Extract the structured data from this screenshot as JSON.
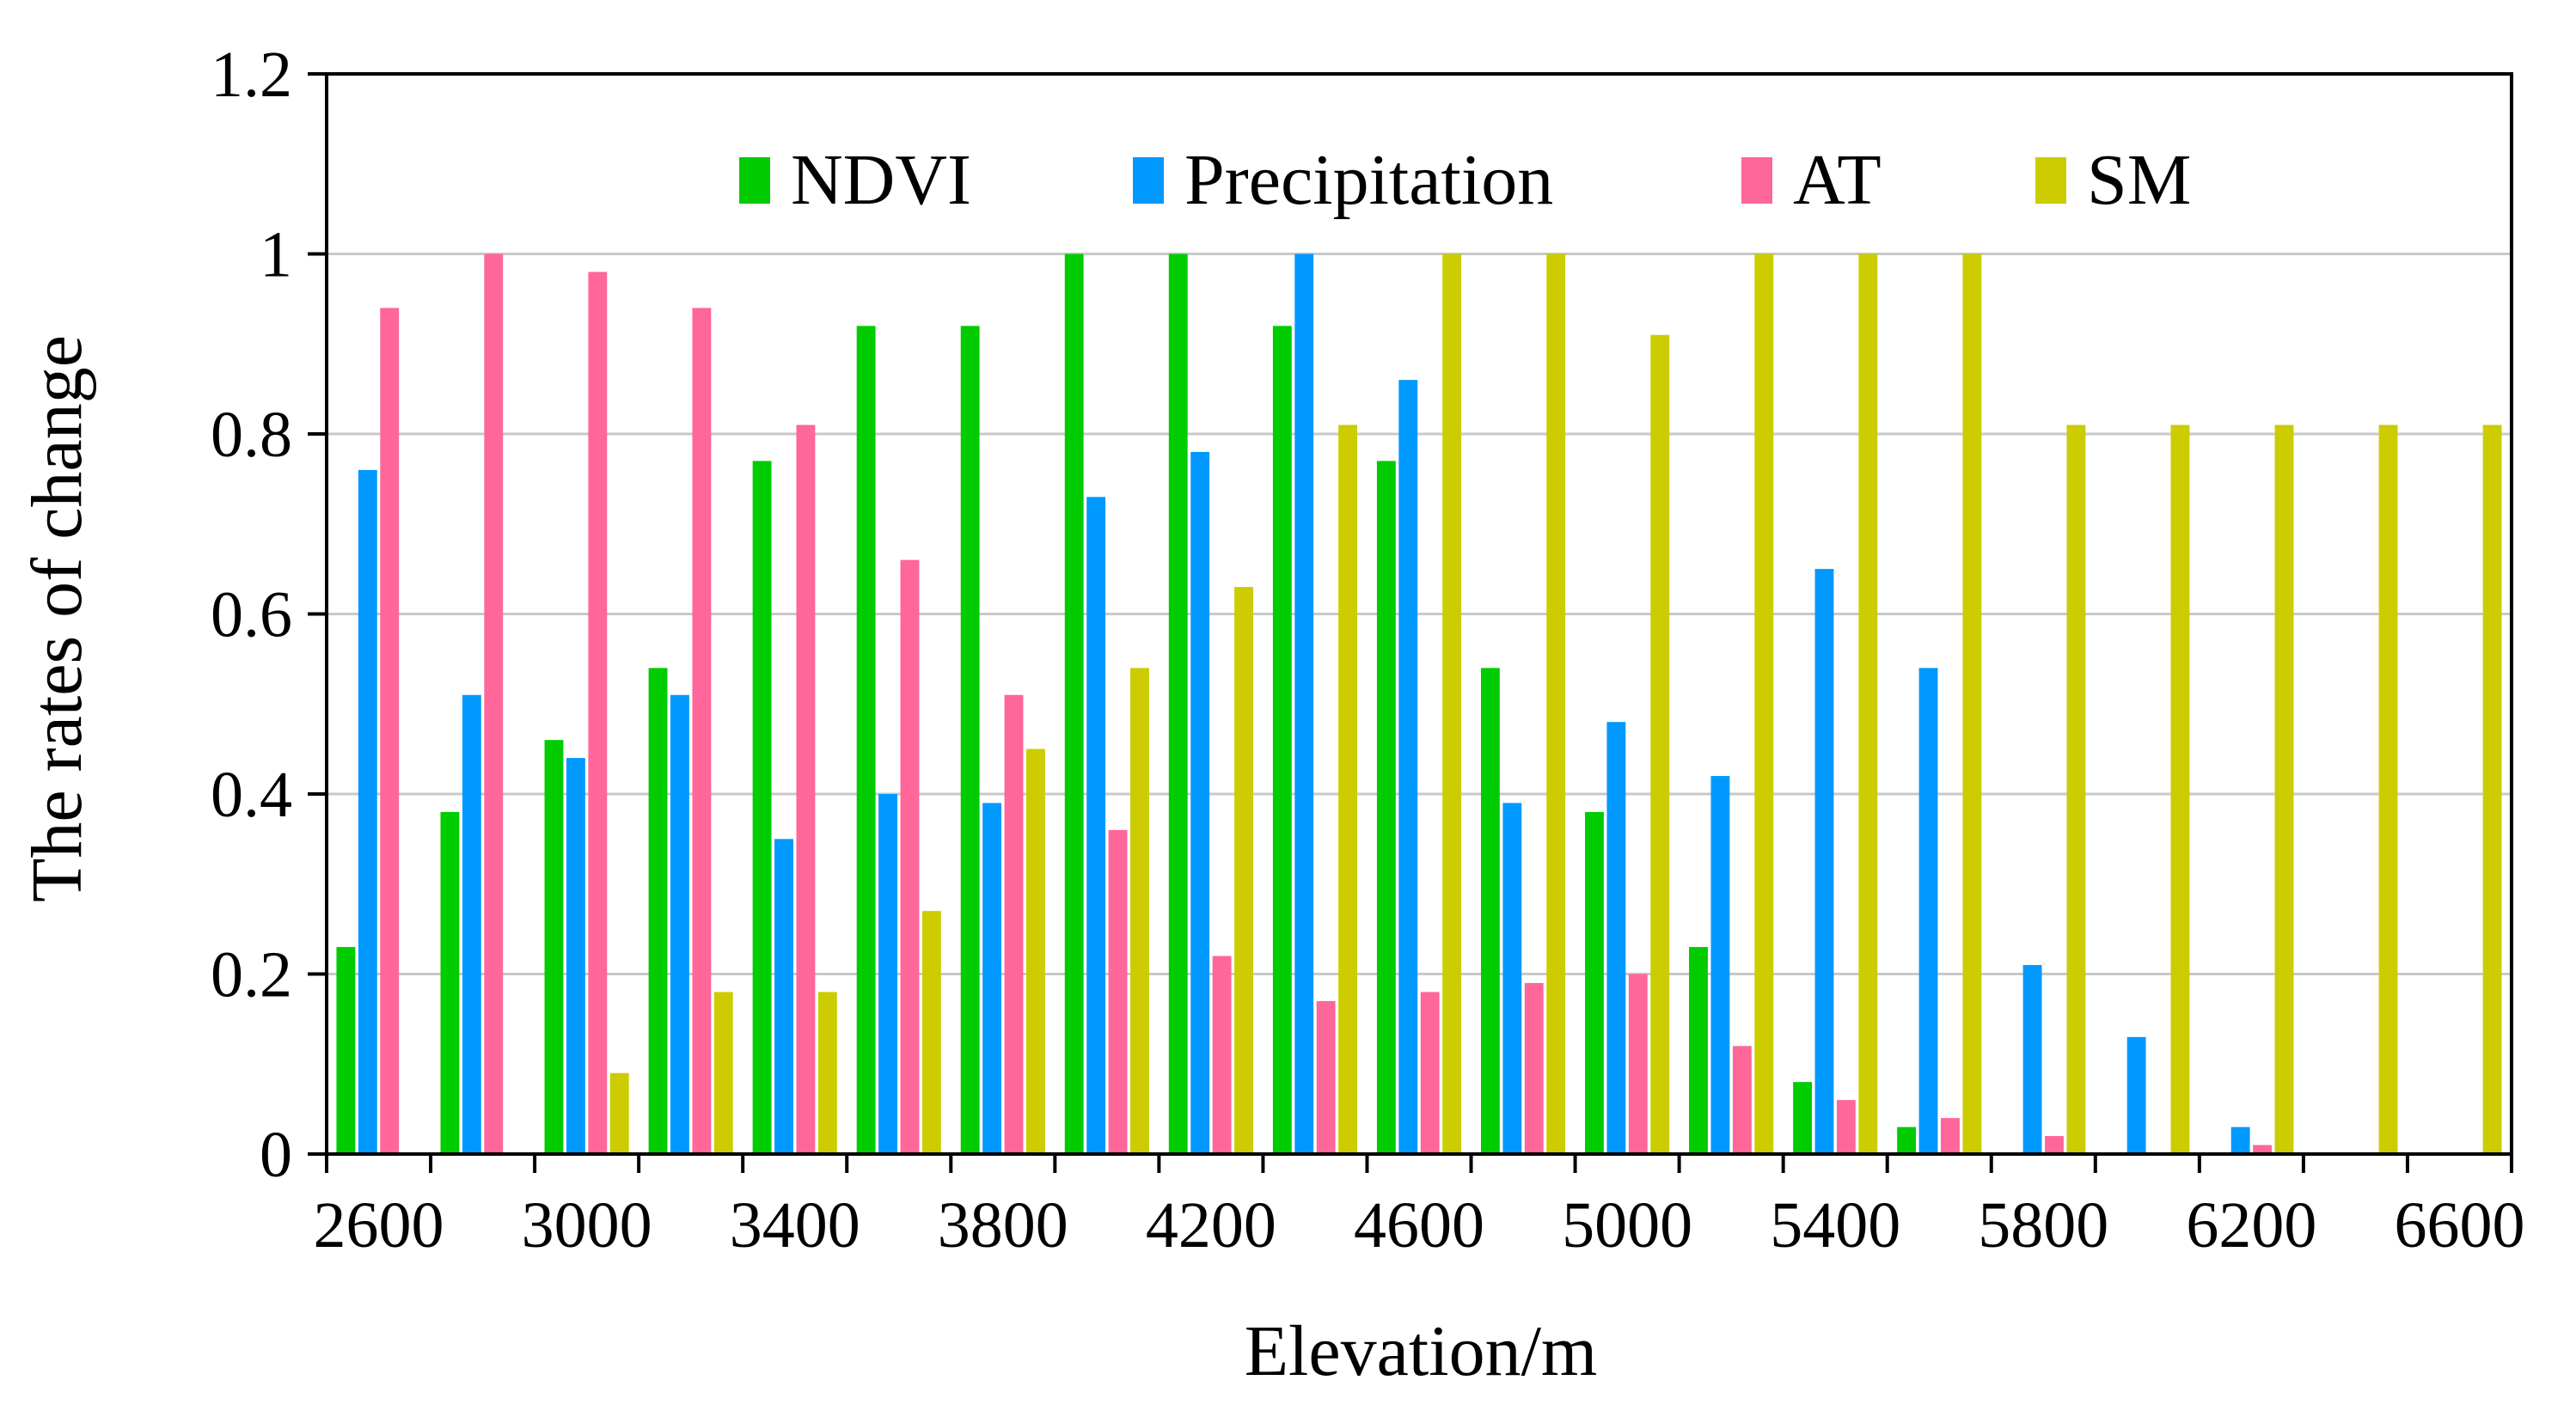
{
  "chart_data": {
    "type": "bar",
    "title": "",
    "xlabel": "Elevation/m",
    "ylabel": "The rates of change",
    "ylim": [
      0,
      1.2
    ],
    "yticks": [
      "0",
      "0.2",
      "0.4",
      "0.6",
      "0.8",
      "1",
      "1.2"
    ],
    "xtick_labels": [
      "2600",
      "3000",
      "3400",
      "3800",
      "4200",
      "4600",
      "5000",
      "5400",
      "5800",
      "6200",
      "6600"
    ],
    "categories": [
      "2600",
      "2800",
      "3000",
      "3200",
      "3400",
      "3600",
      "3800",
      "4000",
      "4200",
      "4400",
      "4600",
      "4800",
      "5000",
      "5200",
      "5400",
      "5600",
      "5800",
      "6000",
      "6200",
      "6400",
      "6600"
    ],
    "grid": true,
    "legend_position": "top",
    "series": [
      {
        "name": "NDVI",
        "color": "#00cc00",
        "values": [
          0.23,
          0.38,
          0.46,
          0.54,
          0.77,
          0.92,
          0.92,
          1.0,
          1.0,
          0.92,
          0.77,
          0.54,
          0.38,
          0.23,
          0.08,
          0.03,
          0,
          0,
          0,
          0,
          0
        ]
      },
      {
        "name": "Precipitation",
        "color": "#0099ff",
        "values": [
          0.76,
          0.51,
          0.44,
          0.51,
          0.35,
          0.4,
          0.39,
          0.73,
          0.78,
          1.0,
          0.86,
          0.39,
          0.48,
          0.42,
          0.65,
          0.54,
          0.21,
          0.13,
          0.03,
          0,
          0
        ]
      },
      {
        "name": "AT",
        "color": "#ff6699",
        "values": [
          0.94,
          1.0,
          0.98,
          0.94,
          0.81,
          0.66,
          0.51,
          0.36,
          0.22,
          0.17,
          0.18,
          0.19,
          0.2,
          0.12,
          0.06,
          0.04,
          0.02,
          0,
          0.01,
          0,
          0
        ]
      },
      {
        "name": "SM",
        "color": "#cccc00",
        "values": [
          0,
          0,
          0.09,
          0.18,
          0.18,
          0.27,
          0.45,
          0.54,
          0.63,
          0.81,
          1.0,
          1.0,
          0.91,
          1.0,
          1.0,
          1.0,
          0.81,
          0.81,
          0.81,
          0.81,
          0.81
        ]
      }
    ]
  }
}
